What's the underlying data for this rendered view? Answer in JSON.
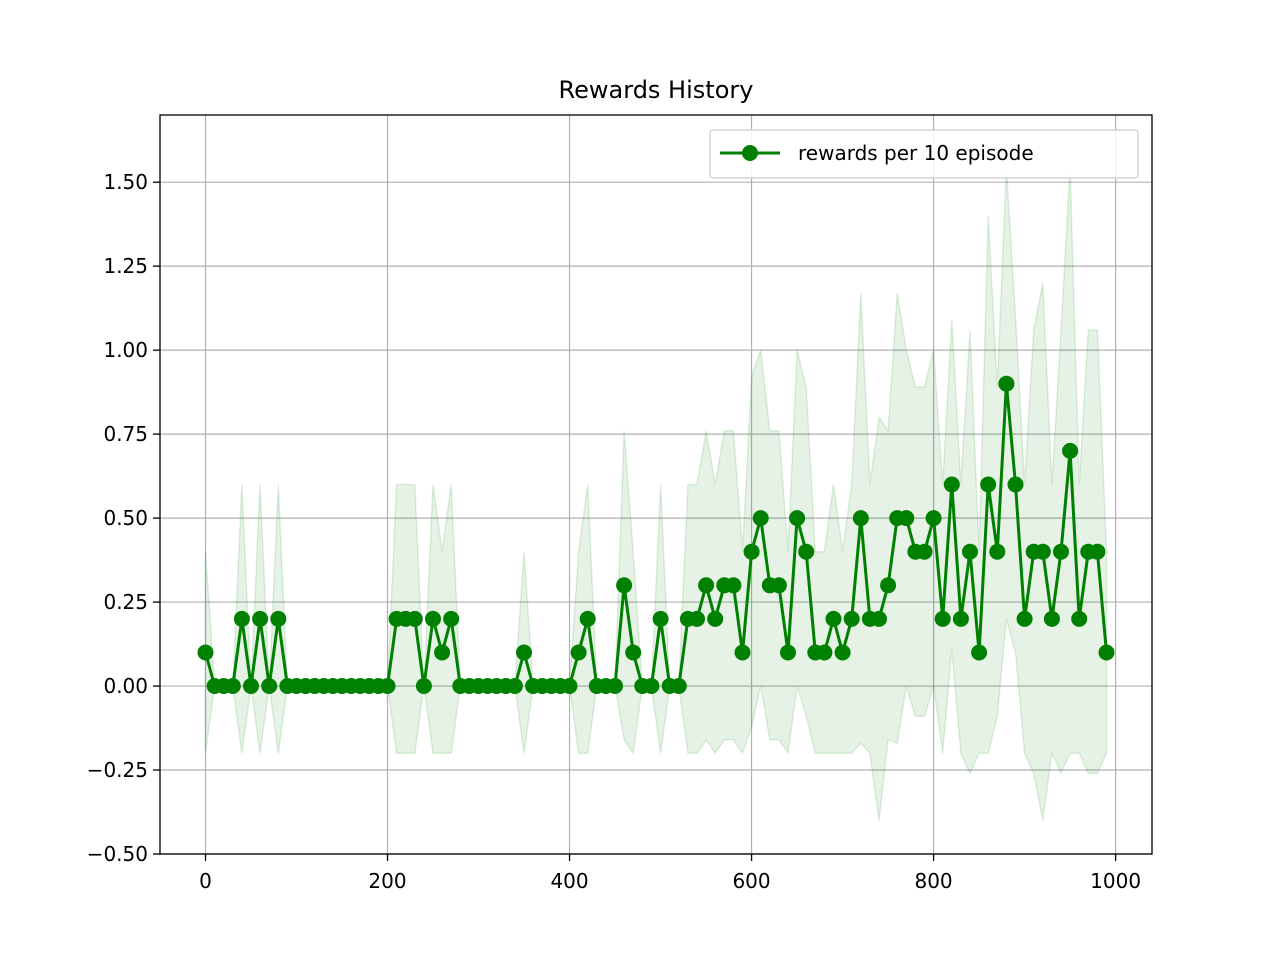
{
  "chart_data": {
    "type": "line",
    "title": "Rewards History",
    "xlabel": "",
    "ylabel": "",
    "xlim": [
      -50,
      1040
    ],
    "ylim": [
      -0.5,
      1.7
    ],
    "x_ticks": [
      0,
      200,
      400,
      600,
      800,
      1000
    ],
    "y_ticks": [
      -0.5,
      -0.25,
      0.0,
      0.25,
      0.5,
      0.75,
      1.0,
      1.25,
      1.5
    ],
    "x_tick_labels": [
      "0",
      "200",
      "400",
      "600",
      "800",
      "1000"
    ],
    "y_tick_labels": [
      "−0.50",
      "−0.25",
      "0.00",
      "0.25",
      "0.50",
      "0.75",
      "1.00",
      "1.25",
      "1.50"
    ],
    "grid": true,
    "legend_position": "top-right",
    "colors": {
      "line": "#008000",
      "band": "#008000"
    },
    "series": [
      {
        "name": "rewards per 10 episode",
        "x": [
          0,
          10,
          20,
          30,
          40,
          50,
          60,
          70,
          80,
          90,
          100,
          110,
          120,
          130,
          140,
          150,
          160,
          170,
          180,
          190,
          200,
          210,
          220,
          230,
          240,
          250,
          260,
          270,
          280,
          290,
          300,
          310,
          320,
          330,
          340,
          350,
          360,
          370,
          380,
          390,
          400,
          410,
          420,
          430,
          440,
          450,
          460,
          470,
          480,
          490,
          500,
          510,
          520,
          530,
          540,
          550,
          560,
          570,
          580,
          590,
          600,
          610,
          620,
          630,
          640,
          650,
          660,
          670,
          680,
          690,
          700,
          710,
          720,
          730,
          740,
          750,
          760,
          770,
          780,
          790,
          800,
          810,
          820,
          830,
          840,
          850,
          860,
          870,
          880,
          890,
          900,
          910,
          920,
          930,
          940,
          950,
          960,
          970,
          980,
          990
        ],
        "values": [
          0.1,
          0,
          0,
          0,
          0.2,
          0,
          0.2,
          0,
          0.2,
          0,
          0,
          0,
          0,
          0,
          0,
          0,
          0,
          0,
          0,
          0,
          0,
          0.2,
          0.2,
          0.2,
          0,
          0.2,
          0.1,
          0.2,
          0,
          0,
          0,
          0,
          0,
          0,
          0,
          0.1,
          0,
          0,
          0,
          0,
          0,
          0.1,
          0.2,
          0,
          0,
          0,
          0.3,
          0.1,
          0,
          0,
          0.2,
          0,
          0,
          0.2,
          0.2,
          0.3,
          0.2,
          0.3,
          0.3,
          0.1,
          0.4,
          0.5,
          0.3,
          0.3,
          0.1,
          0.5,
          0.4,
          0.1,
          0.1,
          0.2,
          0.1,
          0.2,
          0.5,
          0.2,
          0.2,
          0.3,
          0.5,
          0.5,
          0.4,
          0.4,
          0.5,
          0.2,
          0.6,
          0.2,
          0.4,
          0.1,
          0.6,
          0.4,
          0.9,
          0.6,
          0.2,
          0.4,
          0.4,
          0.2,
          0.4,
          0.7,
          0.2,
          0.4,
          0.4,
          0.1
        ],
        "band_upper": [
          0.4,
          0,
          0,
          0,
          0.6,
          0,
          0.6,
          0,
          0.6,
          0,
          0,
          0,
          0,
          0,
          0,
          0,
          0,
          0,
          0,
          0,
          0,
          0.6,
          0.6,
          0.6,
          0,
          0.6,
          0.4,
          0.6,
          0,
          0,
          0,
          0,
          0,
          0,
          0,
          0.4,
          0,
          0,
          0,
          0,
          0,
          0.4,
          0.6,
          0,
          0,
          0,
          0.76,
          0.4,
          0,
          0,
          0.6,
          0,
          0,
          0.6,
          0.6,
          0.76,
          0.6,
          0.76,
          0.76,
          0.4,
          0.92,
          1.0,
          0.76,
          0.76,
          0.4,
          1.0,
          0.89,
          0.4,
          0.4,
          0.6,
          0.4,
          0.6,
          1.17,
          0.6,
          0.8,
          0.76,
          1.17,
          1.0,
          0.89,
          0.89,
          1.0,
          0.6,
          1.09,
          0.6,
          1.06,
          0.4,
          1.4,
          0.89,
          1.54,
          1.1,
          0.6,
          1.06,
          1.2,
          0.6,
          1.06,
          1.54,
          0.6,
          1.06,
          1.06,
          0.4
        ],
        "band_lower": [
          -0.2,
          0,
          0,
          0,
          -0.2,
          0,
          -0.2,
          0,
          -0.2,
          0,
          0,
          0,
          0,
          0,
          0,
          0,
          0,
          0,
          0,
          0,
          0,
          -0.2,
          -0.2,
          -0.2,
          0,
          -0.2,
          -0.2,
          -0.2,
          0,
          0,
          0,
          0,
          0,
          0,
          0,
          -0.2,
          0,
          0,
          0,
          0,
          0,
          -0.2,
          -0.2,
          0,
          0,
          0,
          -0.16,
          -0.2,
          0,
          0,
          -0.2,
          0,
          0,
          -0.2,
          -0.2,
          -0.16,
          -0.2,
          -0.16,
          -0.16,
          -0.2,
          -0.12,
          0,
          -0.16,
          -0.16,
          -0.2,
          0,
          -0.09,
          -0.2,
          -0.2,
          -0.2,
          -0.2,
          -0.2,
          -0.17,
          -0.2,
          -0.4,
          -0.16,
          -0.17,
          0,
          -0.09,
          -0.09,
          0,
          -0.2,
          0.11,
          -0.2,
          -0.26,
          -0.2,
          -0.2,
          -0.09,
          0.2,
          0.1,
          -0.2,
          -0.26,
          -0.4,
          -0.2,
          -0.26,
          -0.2,
          -0.2,
          -0.26,
          -0.26,
          -0.2
        ]
      }
    ]
  }
}
